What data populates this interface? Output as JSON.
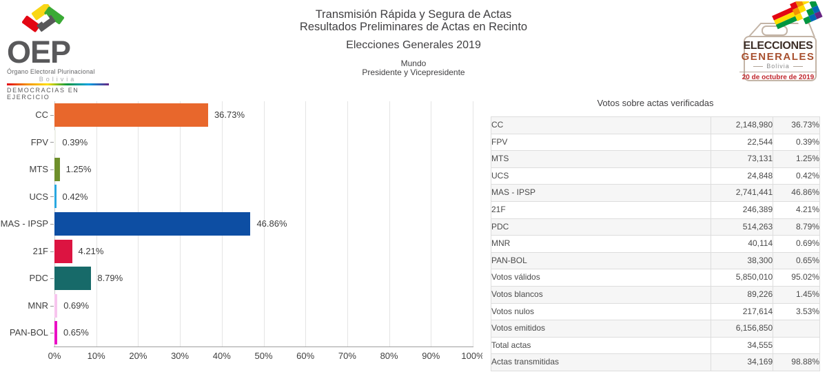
{
  "header": {
    "oep": {
      "acronym": "OEP",
      "line1": "Órgano Electoral Plurinacional",
      "line2": "Bolivia",
      "line3": "DEMOCRACIAS EN EJERCICIO"
    },
    "titles": {
      "line1": "Transmisión Rápida y Segura de Actas",
      "line2": "Resultados Preliminares de Actas en Recinto",
      "line3": "Elecciones Generales 2019",
      "scope": "Mundo",
      "contest": "Presidente y Vicepresidente"
    },
    "eg_logo": {
      "line1": "ELECCIONES",
      "line2": "GENERALES",
      "line3": "Bolivia",
      "line4": "20 de octubre de 2019"
    }
  },
  "chart_data": {
    "type": "bar",
    "orientation": "horizontal",
    "categories": [
      "CC",
      "FPV",
      "MTS",
      "UCS",
      "MAS - IPSP",
      "21F",
      "PDC",
      "MNR",
      "PAN-BOL"
    ],
    "values": [
      36.73,
      0.39,
      1.25,
      0.42,
      46.86,
      4.21,
      8.79,
      0.69,
      0.65
    ],
    "value_labels": [
      "36.73%",
      "0.39%",
      "1.25%",
      "0.42%",
      "46.86%",
      "4.21%",
      "8.79%",
      "0.69%",
      "0.65%"
    ],
    "colors": [
      "#e8672c",
      "#eef0e8",
      "#6e8f2b",
      "#29a8e0",
      "#0d4ea3",
      "#dc1441",
      "#176a69",
      "#f7c5ee",
      "#ea10c5"
    ],
    "xlim": [
      0,
      100
    ],
    "x_ticks": [
      "0%",
      "10%",
      "20%",
      "30%",
      "40%",
      "50%",
      "60%",
      "70%",
      "80%",
      "90%",
      "100%"
    ],
    "grid": true,
    "legend": false,
    "title": "",
    "xlabel": "",
    "ylabel": ""
  },
  "table": {
    "title": "Votos sobre actas verificadas",
    "rows": [
      {
        "label": "CC",
        "votes": "2,148,980",
        "pct": "36.73%"
      },
      {
        "label": "FPV",
        "votes": "22,544",
        "pct": "0.39%"
      },
      {
        "label": "MTS",
        "votes": "73,131",
        "pct": "1.25%"
      },
      {
        "label": "UCS",
        "votes": "24,848",
        "pct": "0.42%"
      },
      {
        "label": "MAS - IPSP",
        "votes": "2,741,441",
        "pct": "46.86%"
      },
      {
        "label": "21F",
        "votes": "246,389",
        "pct": "4.21%"
      },
      {
        "label": "PDC",
        "votes": "514,263",
        "pct": "8.79%"
      },
      {
        "label": "MNR",
        "votes": "40,114",
        "pct": "0.69%"
      },
      {
        "label": "PAN-BOL",
        "votes": "38,300",
        "pct": "0.65%"
      },
      {
        "label": "Votos válidos",
        "votes": "5,850,010",
        "pct": "95.02%"
      },
      {
        "label": "Votos blancos",
        "votes": "89,226",
        "pct": "1.45%"
      },
      {
        "label": "Votos nulos",
        "votes": "217,614",
        "pct": "3.53%"
      },
      {
        "label": "Votos emitidos",
        "votes": "6,156,850",
        "pct": ""
      },
      {
        "label": "Total actas",
        "votes": "34,555",
        "pct": ""
      },
      {
        "label": "Actas transmitidas",
        "votes": "34,169",
        "pct": "98.88%"
      }
    ]
  }
}
